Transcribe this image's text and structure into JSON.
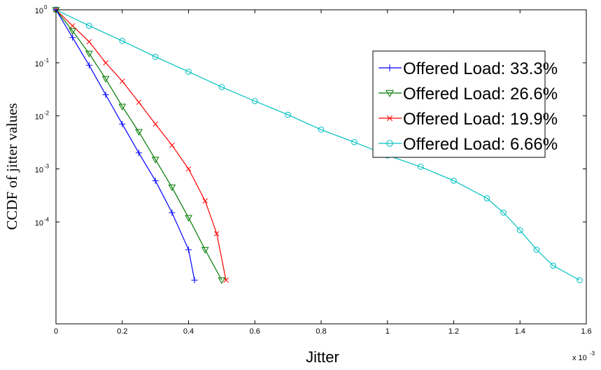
{
  "chart_data": {
    "type": "line",
    "y_scale": "log",
    "xlabel": "Jitter",
    "ylabel": "CCDF of jitter values",
    "x_multiplier_label": "x 10",
    "x_multiplier_exponent": "-3",
    "xlim": [
      0,
      0.0016
    ],
    "ylim": [
      1.2e-06,
      1
    ],
    "x_ticks": [
      0,
      0.0002,
      0.0004,
      0.0006,
      0.0008,
      0.001,
      0.0012,
      0.0014,
      0.0016
    ],
    "x_tick_labels": [
      "0",
      "0.2",
      "0.4",
      "0.6",
      "0.8",
      "1",
      "1.2",
      "1.4",
      "1.6"
    ],
    "y_ticks": [
      1,
      0.1,
      0.01,
      0.001,
      0.0001
    ],
    "y_tick_base": "10",
    "y_tick_exponents": [
      "0",
      "-1",
      "-2",
      "-3",
      "-4"
    ],
    "grid": false,
    "legend_position": "top-right",
    "series": [
      {
        "name": "Offered Load: 33.3%",
        "color": "#0000ff",
        "marker": "plus",
        "x": [
          0,
          5e-05,
          0.0001,
          0.00015,
          0.0002,
          0.00025,
          0.0003,
          0.00035,
          0.0004,
          0.000418
        ],
        "y": [
          1,
          0.3,
          0.09,
          0.025,
          0.007,
          0.002,
          0.0006,
          0.00015,
          3e-05,
          8e-06
        ]
      },
      {
        "name": "Offered Load: 26.6%",
        "color": "#007a00",
        "marker": "triangle-down",
        "x": [
          0,
          5e-05,
          0.0001,
          0.00015,
          0.0002,
          0.00025,
          0.0003,
          0.00035,
          0.0004,
          0.00045,
          0.0005
        ],
        "y": [
          1,
          0.4,
          0.15,
          0.05,
          0.015,
          0.005,
          0.0015,
          0.00045,
          0.00012,
          3e-05,
          8e-06
        ]
      },
      {
        "name": "Offered Load: 19.9%",
        "color": "#ff0000",
        "marker": "x",
        "x": [
          0,
          5e-05,
          0.0001,
          0.00015,
          0.0002,
          0.00025,
          0.0003,
          0.00035,
          0.0004,
          0.00045,
          0.000485,
          0.000513
        ],
        "y": [
          1,
          0.5,
          0.25,
          0.1,
          0.045,
          0.018,
          0.007,
          0.0028,
          0.001,
          0.00025,
          6e-05,
          8e-06
        ]
      },
      {
        "name": "Offered Load: 6.66%",
        "color": "#00bfbf",
        "marker": "circle",
        "x": [
          0,
          0.0001,
          0.0002,
          0.0003,
          0.0004,
          0.0005,
          0.0006,
          0.0007,
          0.0008,
          0.0009,
          0.001,
          0.0011,
          0.0012,
          0.0013,
          0.00135,
          0.0014,
          0.00145,
          0.0015,
          0.00158
        ],
        "y": [
          1,
          0.5,
          0.26,
          0.13,
          0.068,
          0.035,
          0.019,
          0.0105,
          0.0055,
          0.0032,
          0.0018,
          0.0011,
          0.0006,
          0.00028,
          0.00015,
          7e-05,
          3e-05,
          1.5e-05,
          8e-06
        ]
      }
    ]
  }
}
